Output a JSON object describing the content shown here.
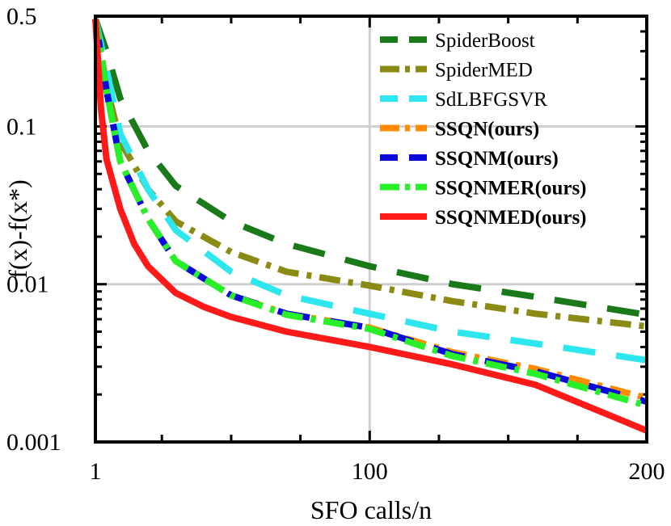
{
  "chart_data": {
    "type": "line",
    "title": "",
    "xlabel": "SFO calls/n",
    "ylabel": "f(x)-f(x*)",
    "xlim": [
      1,
      200
    ],
    "ylim": [
      0.001,
      0.5
    ],
    "yscale": "log",
    "x_ticks": [
      {
        "value": 1,
        "label": "1"
      },
      {
        "value": 100,
        "label": "100"
      },
      {
        "value": 200,
        "label": "200"
      }
    ],
    "y_ticks": [
      {
        "value": 0.5,
        "label": "0.5"
      },
      {
        "value": 0.1,
        "label": "0.1"
      },
      {
        "value": 0.01,
        "label": "0.01"
      },
      {
        "value": 0.001,
        "label": "0.001"
      }
    ],
    "grid": true,
    "legend_position": "top-right",
    "series": [
      {
        "name": "SpiderBoost",
        "color": "#1a7a1a",
        "dash": "long",
        "bold": false,
        "x": [
          1,
          5,
          10,
          20,
          30,
          50,
          70,
          100,
          130,
          160,
          200
        ],
        "y": [
          0.48,
          0.3,
          0.15,
          0.07,
          0.042,
          0.025,
          0.018,
          0.013,
          0.01,
          0.0083,
          0.0064
        ]
      },
      {
        "name": "SpiderMED",
        "color": "#8a8a14",
        "dash": "dashdot",
        "bold": false,
        "x": [
          1,
          5,
          10,
          20,
          30,
          50,
          70,
          100,
          130,
          160,
          200
        ],
        "y": [
          0.48,
          0.18,
          0.08,
          0.04,
          0.025,
          0.016,
          0.012,
          0.0098,
          0.0078,
          0.0065,
          0.0054
        ]
      },
      {
        "name": "SdLBFGSVR",
        "color": "#2ee6ee",
        "dash": "long",
        "bold": false,
        "x": [
          1,
          5,
          10,
          20,
          30,
          50,
          70,
          100,
          130,
          160,
          200
        ],
        "y": [
          0.48,
          0.23,
          0.09,
          0.04,
          0.022,
          0.012,
          0.0085,
          0.0065,
          0.005,
          0.0042,
          0.0033
        ]
      },
      {
        "name": "SSQN(ours)",
        "color": "#ff8c00",
        "dash": "dashdot",
        "bold": true,
        "x": [
          1,
          5,
          10,
          20,
          30,
          50,
          70,
          100,
          130,
          160,
          200
        ],
        "y": [
          0.48,
          0.17,
          0.06,
          0.026,
          0.014,
          0.0085,
          0.0065,
          0.0053,
          0.0037,
          0.0029,
          0.0019
        ]
      },
      {
        "name": "SSQNM(ours)",
        "color": "#0a0ad8",
        "dash": "long",
        "bold": true,
        "x": [
          1,
          5,
          10,
          20,
          30,
          50,
          70,
          100,
          130,
          160,
          200
        ],
        "y": [
          0.48,
          0.17,
          0.06,
          0.026,
          0.014,
          0.0085,
          0.0065,
          0.0053,
          0.0036,
          0.0028,
          0.0018
        ]
      },
      {
        "name": "SSQNMER(ours)",
        "color": "#28f028",
        "dash": "dashdot",
        "bold": true,
        "x": [
          1,
          5,
          10,
          20,
          30,
          50,
          70,
          100,
          130,
          160,
          200
        ],
        "y": [
          0.48,
          0.17,
          0.06,
          0.026,
          0.014,
          0.0085,
          0.0064,
          0.0052,
          0.0035,
          0.0027,
          0.0017
        ]
      },
      {
        "name": "SSQNMED(ours)",
        "color": "#ff1a1a",
        "dash": "solid",
        "bold": true,
        "x": [
          1,
          3,
          5,
          10,
          15,
          20,
          30,
          40,
          50,
          70,
          100,
          130,
          160,
          200
        ],
        "y": [
          0.48,
          0.13,
          0.062,
          0.03,
          0.018,
          0.013,
          0.0088,
          0.0072,
          0.0062,
          0.005,
          0.004,
          0.0031,
          0.0023,
          0.00118
        ]
      }
    ]
  }
}
